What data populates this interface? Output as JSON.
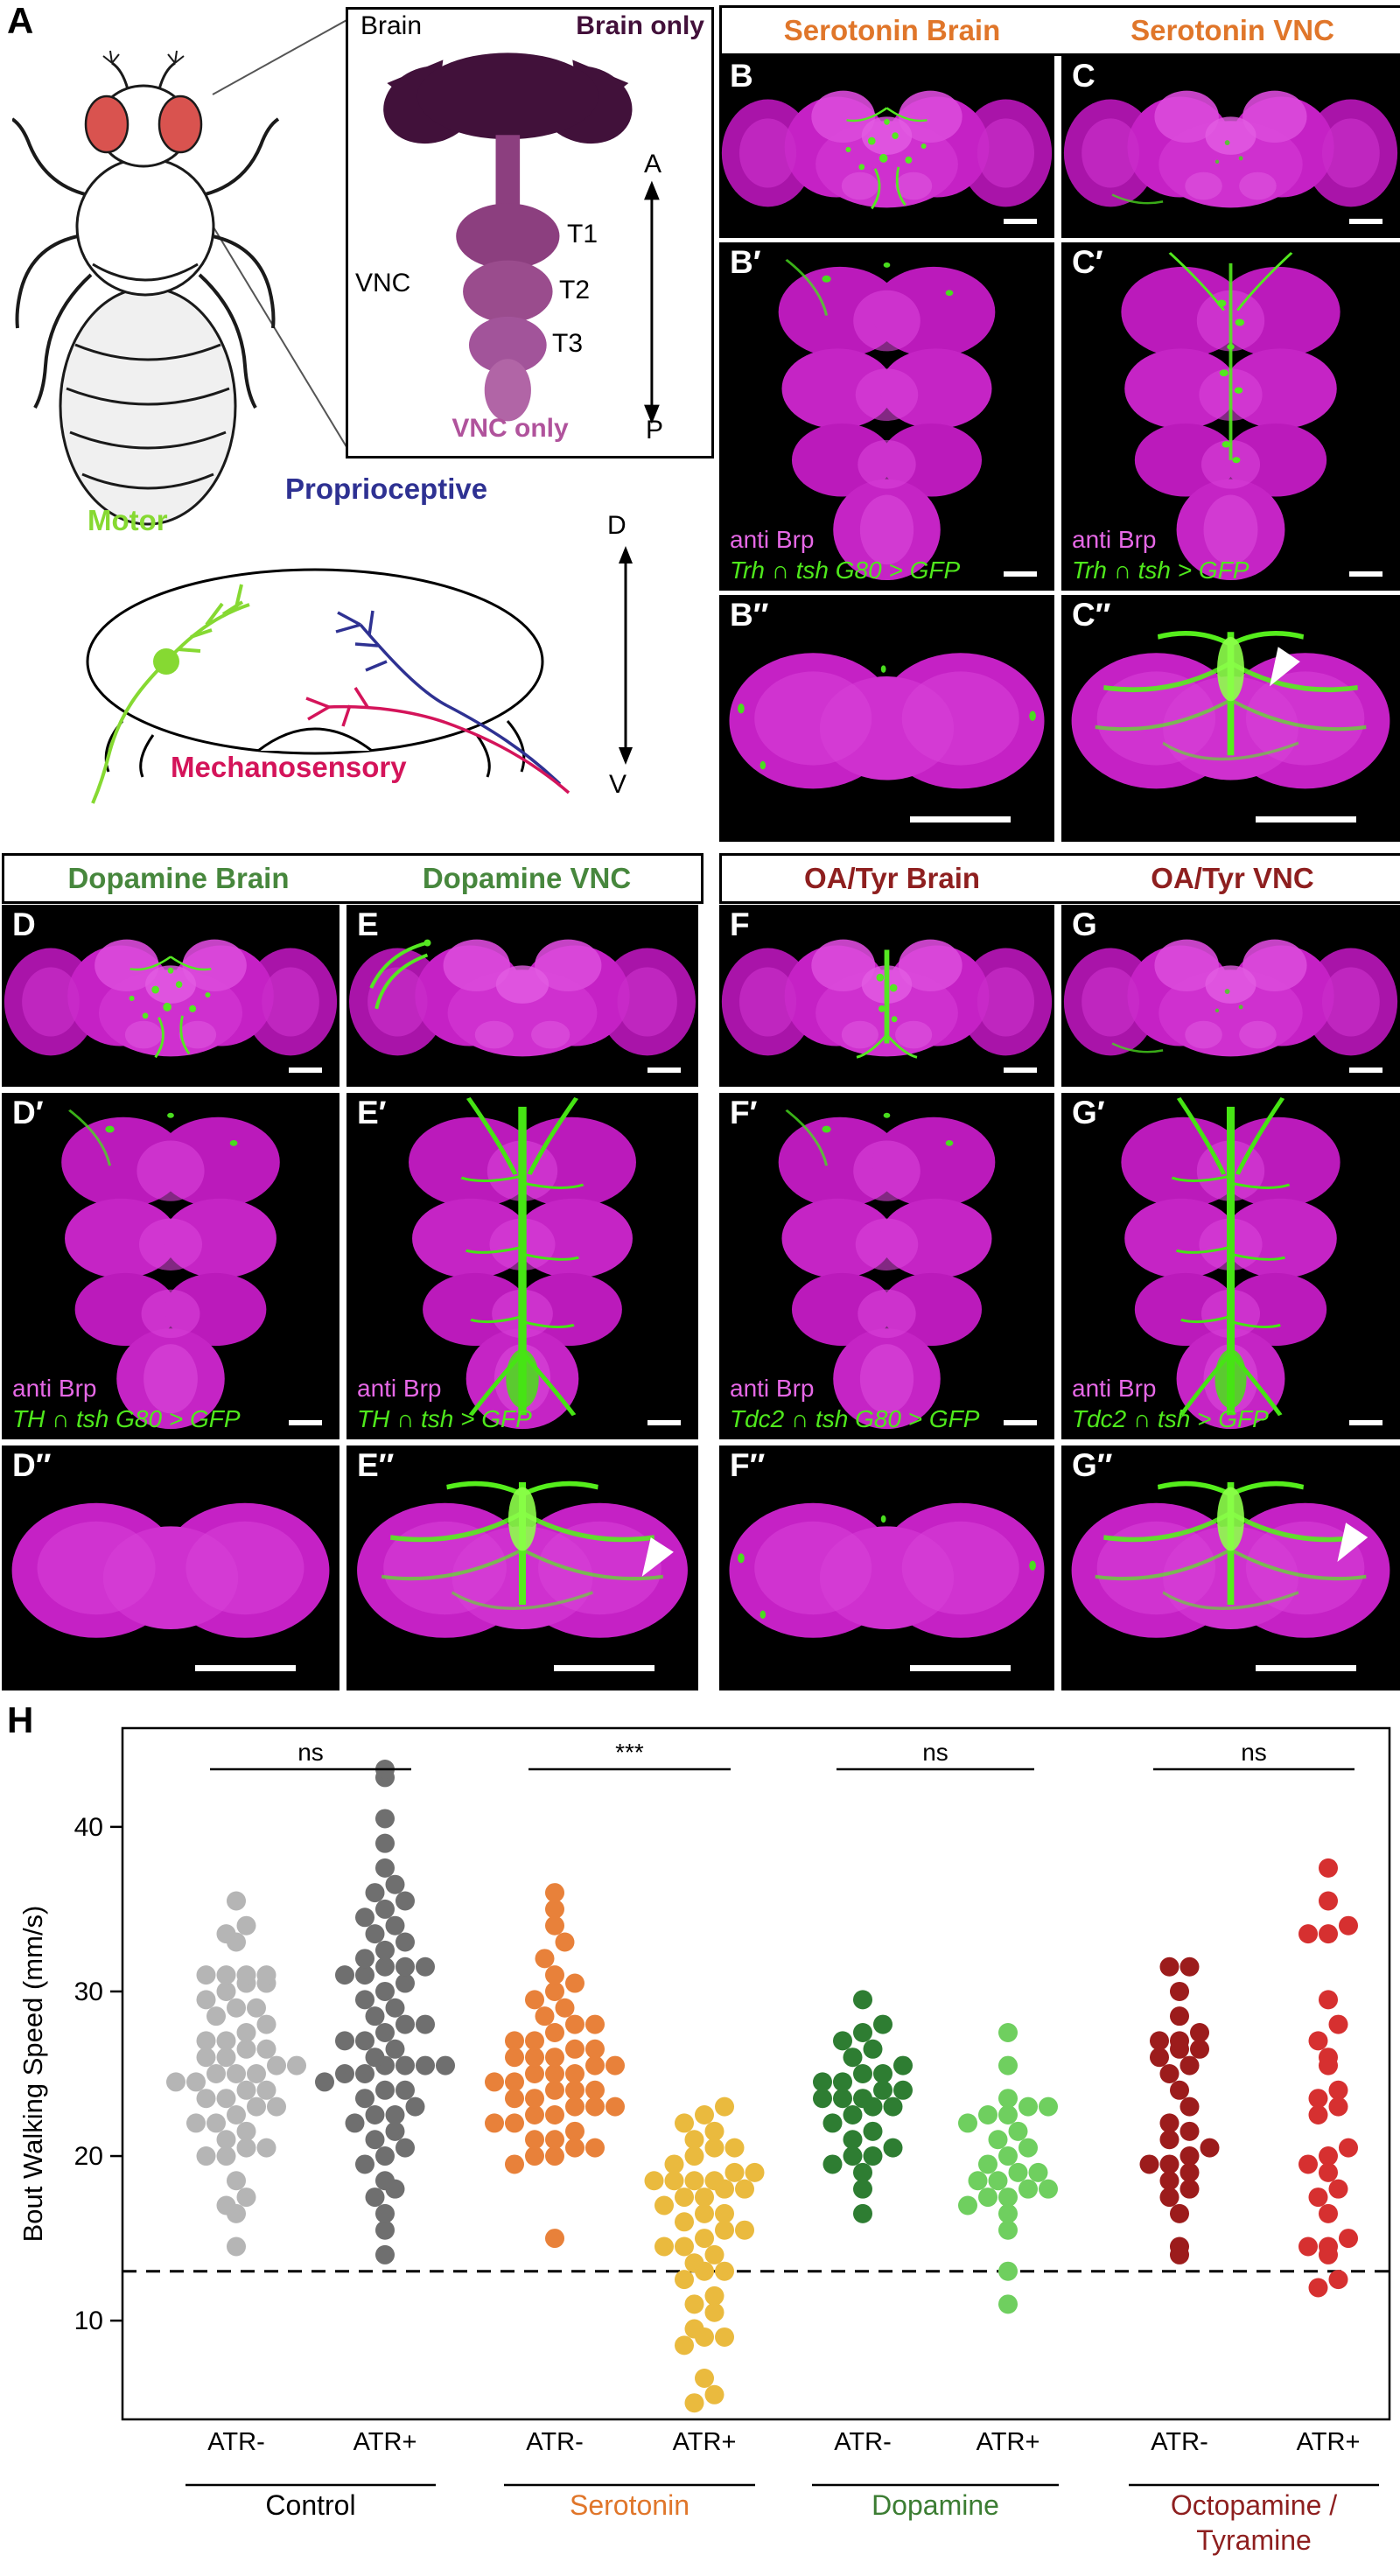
{
  "panel_a": {
    "letter": "A",
    "inset": {
      "brain_label": "Brain",
      "brain_only_label": "Brain only",
      "vnc_label": "VNC",
      "t1": "T1",
      "t2": "T2",
      "t3": "T3",
      "vnc_only_label": "VNC only",
      "anterior": "A",
      "posterior": "P"
    },
    "schematic": {
      "motor": "Motor",
      "proprioceptive": "Proprioceptive",
      "mechanosensory": "Mechanosensory",
      "dorsal": "D",
      "ventral": "V"
    },
    "colors": {
      "brain_only": "#42103a",
      "vnc_only": "#b0539c",
      "motor": "#86d932",
      "proprioceptive": "#2e3192",
      "mechanosensory": "#d4145a"
    }
  },
  "group_headers": {
    "serotonin": {
      "left": "Serotonin Brain",
      "right": "Serotonin VNC",
      "color": "#e0762a"
    },
    "dopamine": {
      "left": "Dopamine Brain",
      "right": "Dopamine VNC",
      "color": "#47873d"
    },
    "oatyr": {
      "left": "OA/Tyr Brain",
      "right": "OA/Tyr VNC",
      "color": "#8e1f1f"
    }
  },
  "micrographs": {
    "B": {
      "letter": "B"
    },
    "C": {
      "letter": "C"
    },
    "Bp": {
      "letter": "B′",
      "stain": "anti Brp",
      "genotype": "Trh ∩ tsh G80 > GFP"
    },
    "Cp": {
      "letter": "C′",
      "stain": "anti Brp",
      "genotype": "Trh ∩ tsh > GFP"
    },
    "Bpp": {
      "letter": "B″"
    },
    "Cpp": {
      "letter": "C″"
    },
    "D": {
      "letter": "D"
    },
    "E": {
      "letter": "E"
    },
    "Dp": {
      "letter": "D′",
      "stain": "anti Brp",
      "genotype": "TH ∩ tsh G80 > GFP"
    },
    "Ep": {
      "letter": "E′",
      "stain": "anti Brp",
      "genotype": "TH ∩ tsh > GFP"
    },
    "Dpp": {
      "letter": "D″"
    },
    "Epp": {
      "letter": "E″"
    },
    "F": {
      "letter": "F"
    },
    "G": {
      "letter": "G"
    },
    "Fp": {
      "letter": "F′",
      "stain": "anti Brp",
      "genotype": "Tdc2 ∩ tsh G80 > GFP"
    },
    "Gp": {
      "letter": "G′",
      "stain": "anti Brp",
      "genotype": "Tdc2 ∩ tsh > GFP"
    },
    "Fpp": {
      "letter": "F″"
    },
    "Gpp": {
      "letter": "G″"
    }
  },
  "chart_data": {
    "type": "scatter",
    "variant": "beeswarm-dot-plot",
    "panel_letter": "H",
    "title": "",
    "xlabel": "",
    "ylabel": "Bout Walking Speed (mm/s)",
    "yticks": [
      10,
      20,
      30,
      40
    ],
    "ylim": [
      4,
      46
    ],
    "dashed_line_y": 13,
    "grid": false,
    "groups": [
      {
        "label": "Control",
        "label_lines": [
          "Control"
        ],
        "label_color": "#000000",
        "significance": "ns",
        "series": [
          {
            "label": "ATR-",
            "color": "#b5b5b5",
            "values": [
              14.5,
              16.5,
              17,
              17.5,
              18.5,
              20,
              20,
              20.5,
              20.5,
              21,
              21.5,
              22,
              22,
              22.5,
              23,
              23,
              23.5,
              23.5,
              24,
              24,
              24.5,
              24.5,
              25,
              25,
              25,
              25.5,
              25.5,
              26,
              26,
              26.5,
              26.5,
              27,
              27,
              27.5,
              28,
              28.5,
              29,
              29,
              29.5,
              30,
              30.5,
              30.5,
              31,
              31,
              31,
              31,
              33,
              33.5,
              34,
              35.5
            ]
          },
          {
            "label": "ATR+",
            "color": "#6f6f6f",
            "values": [
              14,
              15.5,
              16.5,
              17.5,
              18,
              18.5,
              19.5,
              20,
              20.5,
              21,
              21.5,
              22,
              22.5,
              22.5,
              23,
              23.5,
              24,
              24,
              24.5,
              25,
              25,
              25.5,
              25.5,
              25.5,
              25.5,
              26,
              26.5,
              27,
              27,
              27.5,
              28,
              28,
              28.5,
              29,
              29.5,
              30,
              30.5,
              31,
              31,
              31.5,
              31.5,
              31.5,
              32,
              32.5,
              33,
              33.5,
              34,
              34.5,
              35,
              35.5,
              36,
              36.5,
              37.5,
              39,
              40.5,
              43,
              43.5
            ]
          }
        ]
      },
      {
        "label": "Serotonin",
        "label_lines": [
          "Serotonin"
        ],
        "label_color": "#e0762a",
        "significance": "***",
        "series": [
          {
            "label": "ATR-",
            "color": "#e8813a",
            "values": [
              15,
              19.5,
              20,
              20,
              20.5,
              20.5,
              21,
              21,
              21.5,
              22,
              22,
              22.5,
              22.5,
              23,
              23,
              23,
              23.5,
              23.5,
              24,
              24,
              24,
              24.5,
              24.5,
              25,
              25,
              25,
              25.5,
              25.5,
              26,
              26,
              26,
              26.5,
              26.5,
              27,
              27,
              27.5,
              28,
              28,
              28.5,
              29,
              29.5,
              30,
              30.5,
              31,
              32,
              33,
              34,
              35,
              36
            ]
          },
          {
            "label": "ATR+",
            "color": "#eaba3e",
            "values": [
              5,
              5.5,
              6.5,
              8.5,
              9,
              9,
              9.5,
              10.5,
              11,
              11.5,
              12.5,
              13,
              13,
              13.5,
              14,
              14.5,
              14.5,
              15,
              15.5,
              15.5,
              16,
              16.5,
              16.5,
              17,
              17.5,
              17.5,
              18,
              18,
              18.5,
              18.5,
              18.5,
              18.5,
              19,
              19,
              19.5,
              20,
              20.5,
              20.5,
              21,
              21.5,
              22,
              22.5,
              23
            ]
          }
        ]
      },
      {
        "label": "Dopamine",
        "label_lines": [
          "Dopamine"
        ],
        "label_color": "#3c7d33",
        "significance": "ns",
        "series": [
          {
            "label": "ATR-",
            "color": "#2e7d32",
            "values": [
              16.5,
              18,
              19,
              19.5,
              20,
              20,
              20.5,
              21,
              21.5,
              22,
              22.5,
              23,
              23,
              23.5,
              23.5,
              23.5,
              24,
              24,
              24.5,
              24.5,
              25,
              25,
              25.5,
              26,
              26.5,
              27,
              27.5,
              28,
              29.5
            ]
          },
          {
            "label": "ATR+",
            "color": "#6fcf5f",
            "values": [
              11,
              13,
              15.5,
              16.5,
              17,
              17.5,
              17.5,
              18,
              18,
              18.5,
              18.5,
              19,
              19,
              19.5,
              20,
              20.5,
              21,
              21.5,
              22,
              22.5,
              22.5,
              23,
              23,
              23.5,
              25.5,
              27.5
            ]
          }
        ]
      },
      {
        "label": "Octopamine / Tyramine",
        "label_lines": [
          "Octopamine /",
          "Tyramine"
        ],
        "label_color": "#8e1f1f",
        "significance": "ns",
        "series": [
          {
            "label": "ATR-",
            "color": "#9c1c1c",
            "values": [
              14,
              14.5,
              16.5,
              17.5,
              18,
              18.5,
              19,
              19.5,
              19.5,
              20,
              20.5,
              21,
              21.5,
              22,
              23,
              24,
              25,
              25.5,
              26,
              26.5,
              26.5,
              27,
              27,
              27.5,
              28.5,
              30,
              31.5,
              31.5
            ]
          },
          {
            "label": "ATR+",
            "color": "#d63030",
            "values": [
              12,
              12.5,
              14,
              14.5,
              14.5,
              15,
              16.5,
              17.5,
              18,
              19,
              19.5,
              20,
              20.5,
              22.5,
              23,
              23.5,
              24,
              25.5,
              26,
              27,
              28,
              29.5,
              33.5,
              33.5,
              34,
              35.5,
              37.5
            ]
          }
        ]
      }
    ]
  }
}
